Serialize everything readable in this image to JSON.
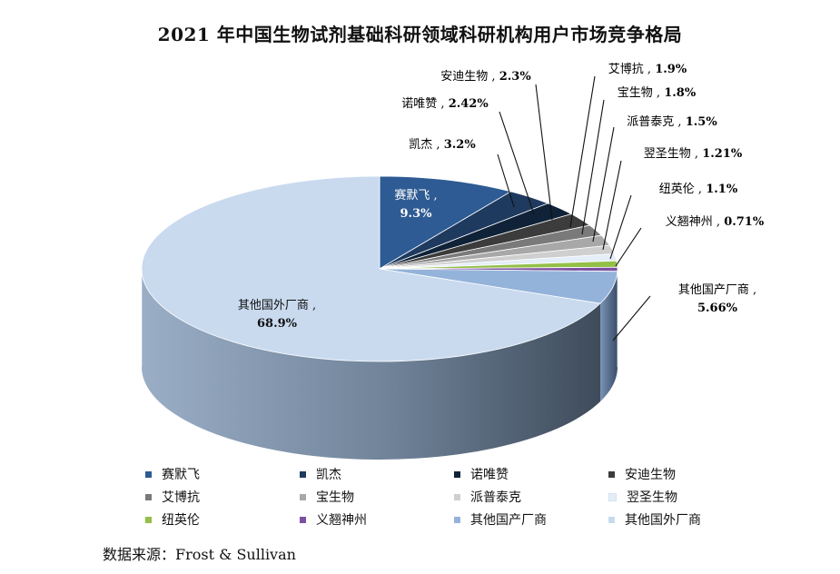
{
  "chart_data": {
    "type": "pie",
    "title": "2021 年中国生物试剂基础科研领域科研机构用户市场竞争格局",
    "slices": [
      {
        "name": "赛默飞",
        "value": 9.3,
        "label": "9.3%",
        "color": "#2e5b93"
      },
      {
        "name": "凯杰",
        "value": 3.2,
        "label": "3.2%",
        "color": "#1f3a5f"
      },
      {
        "name": "诺唯赞",
        "value": 2.42,
        "label": "2.42%",
        "color": "#0f2238"
      },
      {
        "name": "安迪生物",
        "value": 2.3,
        "label": "2.3%",
        "color": "#3c3c3c"
      },
      {
        "name": "艾博抗",
        "value": 1.9,
        "label": "1.9%",
        "color": "#7a7a7a"
      },
      {
        "name": "宝生物",
        "value": 1.8,
        "label": "1.8%",
        "color": "#a8a8a8"
      },
      {
        "name": "派普泰克",
        "value": 1.5,
        "label": "1.5%",
        "color": "#cfcfcf"
      },
      {
        "name": "翌圣生物",
        "value": 1.21,
        "label": "1.21%",
        "color": "#e4eef8"
      },
      {
        "name": "纽英伦",
        "value": 1.1,
        "label": "1.1%",
        "color": "#93c047"
      },
      {
        "name": "义翘神州",
        "value": 0.71,
        "label": "0.71%",
        "color": "#7c4fa2"
      },
      {
        "name": "其他国产厂商",
        "value": 5.66,
        "label": "5.66%",
        "color": "#94b3da"
      },
      {
        "name": "其他国外厂商",
        "value": 68.9,
        "label": "68.9%",
        "color": "#c9daef"
      }
    ],
    "legend_position": "bottom"
  },
  "source": "数据来源：Frost & Sullivan"
}
